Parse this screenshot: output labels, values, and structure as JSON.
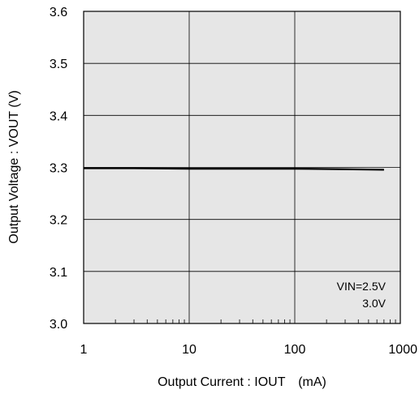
{
  "chart_data": {
    "type": "line",
    "xlabel": "Output Current : IOUT　(mA)",
    "ylabel": "Output Voltage : VOUT (V)",
    "x_scale": "log",
    "xlim": [
      1,
      1000
    ],
    "ylim": [
      3.0,
      3.6
    ],
    "x_ticks": [
      1,
      10,
      100,
      1000
    ],
    "x_tick_labels": [
      "1",
      "10",
      "100",
      "1000"
    ],
    "y_ticks": [
      3.0,
      3.1,
      3.2,
      3.3,
      3.4,
      3.5,
      3.6
    ],
    "y_tick_labels": [
      "3.0",
      "3.1",
      "3.2",
      "3.3",
      "3.4",
      "3.5",
      "3.6"
    ],
    "grid": true,
    "background_color": "#e6e6e6",
    "annotation_lines": [
      "VIN=2.5V",
      "3.0V"
    ],
    "series": [
      {
        "x": [
          1,
          3,
          10,
          30,
          100,
          300,
          700
        ],
        "y": [
          3.298,
          3.298,
          3.297,
          3.297,
          3.297,
          3.296,
          3.295
        ],
        "color": "#000000"
      },
      {
        "x": [
          1,
          3,
          10,
          30,
          100,
          300,
          700
        ],
        "y": [
          3.299,
          3.299,
          3.298,
          3.298,
          3.298,
          3.297,
          3.296
        ],
        "color": "#000000"
      }
    ]
  }
}
